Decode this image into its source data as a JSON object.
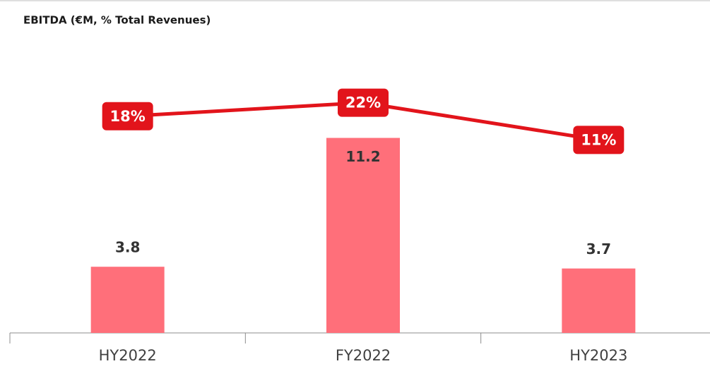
{
  "chart_data": {
    "type": "combo",
    "title": "EBITDA (€M, % Total Revenues)",
    "categories": [
      "HY2022",
      "FY2022",
      "HY2023"
    ],
    "series": [
      {
        "type": "bar",
        "color": "#ff6f7a",
        "values": [
          3.8,
          11.2,
          3.7
        ]
      },
      {
        "type": "line",
        "axis": "y2",
        "color": "#e2141b",
        "values": [
          18,
          22,
          11
        ],
        "value_labels": [
          "18%",
          "22%",
          "11%"
        ]
      }
    ],
    "ylim": [
      0,
      17.5
    ],
    "y2lim": [
      -46,
      44
    ]
  }
}
